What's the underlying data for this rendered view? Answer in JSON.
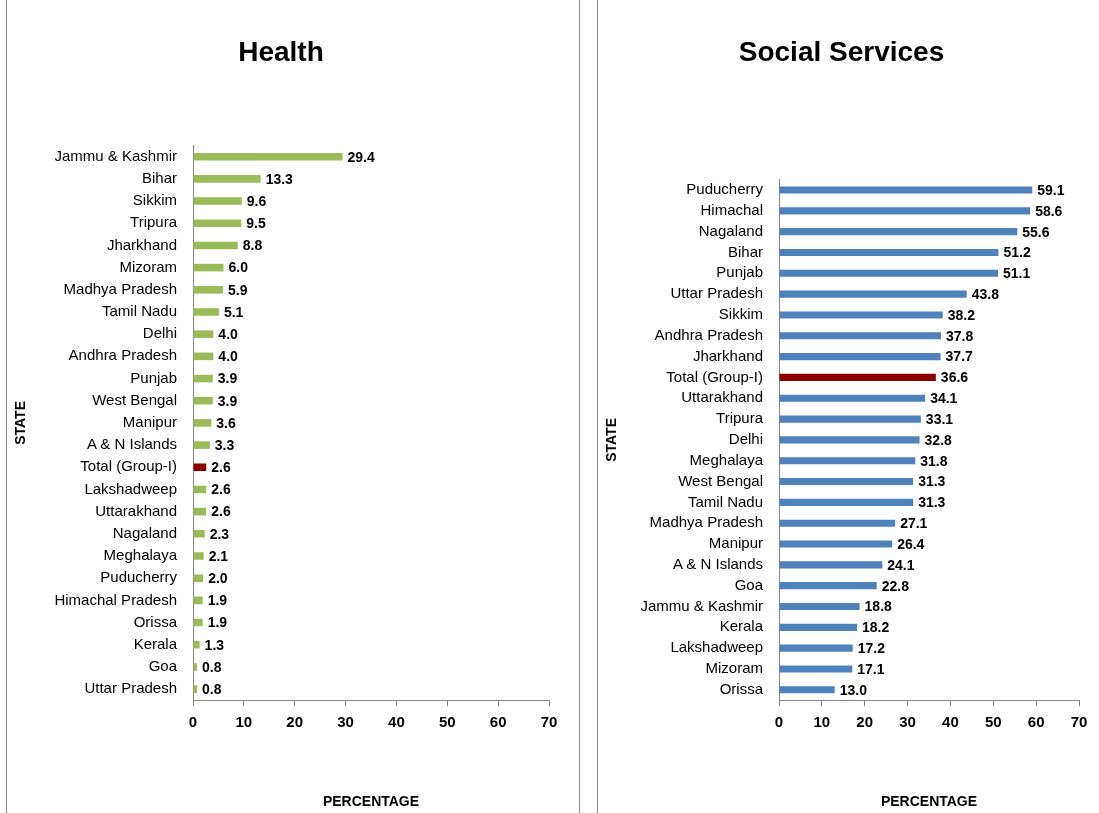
{
  "chart_data": [
    {
      "type": "bar",
      "orientation": "horizontal",
      "title": "Health",
      "xlabel": "PERCENTAGE",
      "ylabel": "STATE",
      "categories": [
        "Jammu & Kashmir",
        "Bihar",
        "Sikkim",
        "Tripura",
        "Jharkhand",
        "Mizoram",
        "Madhya Pradesh",
        "Tamil Nadu",
        "Delhi",
        "Andhra Pradesh",
        "Punjab",
        "West Bengal",
        "Manipur",
        "A & N Islands",
        "Total (Group-I)",
        "Lakshadweep",
        "Uttarakhand",
        "Nagaland",
        "Meghalaya",
        "Puducherry",
        "Himachal Pradesh",
        "Orissa",
        "Kerala",
        "Goa",
        "Uttar Pradesh"
      ],
      "values": [
        29.4,
        13.3,
        9.6,
        9.5,
        8.8,
        6.0,
        5.9,
        5.1,
        4.0,
        4.0,
        3.9,
        3.9,
        3.6,
        3.3,
        2.6,
        2.6,
        2.6,
        2.3,
        2.1,
        2.0,
        1.9,
        1.9,
        1.3,
        0.8,
        0.8
      ],
      "value_labels": [
        "29.4",
        "13.3",
        "9.6",
        "9.5",
        "8.8",
        "6.0",
        "5.9",
        "5.1",
        "4.0",
        "4.0",
        "3.9",
        "3.9",
        "3.6",
        "3.3",
        "2.6",
        "2.6",
        "2.6",
        "2.3",
        "2.1",
        "2.0",
        "1.9",
        "1.9",
        "1.3",
        "0.8",
        "0.8"
      ],
      "colors": [
        "#9bbb59",
        "#9bbb59",
        "#9bbb59",
        "#9bbb59",
        "#9bbb59",
        "#9bbb59",
        "#9bbb59",
        "#9bbb59",
        "#9bbb59",
        "#9bbb59",
        "#9bbb59",
        "#9bbb59",
        "#9bbb59",
        "#9bbb59",
        "#8b0000",
        "#9bbb59",
        "#9bbb59",
        "#9bbb59",
        "#9bbb59",
        "#9bbb59",
        "#9bbb59",
        "#9bbb59",
        "#9bbb59",
        "#9bbb59",
        "#9bbb59"
      ],
      "xlim": [
        0,
        70
      ],
      "xticks": [
        0,
        10,
        20,
        30,
        40,
        50,
        60,
        70
      ]
    },
    {
      "type": "bar",
      "orientation": "horizontal",
      "title": "Social Services",
      "xlabel": "PERCENTAGE",
      "ylabel": "STATE",
      "categories": [
        "Puducherry",
        "Himachal",
        "Nagaland",
        "Bihar",
        "Punjab",
        "Uttar Pradesh",
        "Sikkim",
        "Andhra Pradesh",
        "Jharkhand",
        "Total (Group-I)",
        "Uttarakhand",
        "Tripura",
        "Delhi",
        "Meghalaya",
        "West Bengal",
        "Tamil Nadu",
        "Madhya Pradesh",
        "Manipur",
        "A & N Islands",
        "Goa",
        "Jammu & Kashmir",
        "Kerala",
        "Lakshadweep",
        "Mizoram",
        "Orissa"
      ],
      "values": [
        59.1,
        58.6,
        55.6,
        51.2,
        51.1,
        43.8,
        38.2,
        37.8,
        37.7,
        36.6,
        34.1,
        33.1,
        32.8,
        31.8,
        31.3,
        31.3,
        27.1,
        26.4,
        24.1,
        22.8,
        18.8,
        18.2,
        17.2,
        17.1,
        13.0
      ],
      "value_labels": [
        "59.1",
        "58.6",
        "55.6",
        "51.2",
        "51.1",
        "43.8",
        "38.2",
        "37.8",
        "37.7",
        "36.6",
        "34.1",
        "33.1",
        "32.8",
        "31.8",
        "31.3",
        "31.3",
        "27.1",
        "26.4",
        "24.1",
        "22.8",
        "18.8",
        "18.2",
        "17.2",
        "17.1",
        "13.0"
      ],
      "colors": [
        "#4f81bd",
        "#4f81bd",
        "#4f81bd",
        "#4f81bd",
        "#4f81bd",
        "#4f81bd",
        "#4f81bd",
        "#4f81bd",
        "#4f81bd",
        "#8b0000",
        "#4f81bd",
        "#4f81bd",
        "#4f81bd",
        "#4f81bd",
        "#4f81bd",
        "#4f81bd",
        "#4f81bd",
        "#4f81bd",
        "#4f81bd",
        "#4f81bd",
        "#4f81bd",
        "#4f81bd",
        "#4f81bd",
        "#4f81bd",
        "#4f81bd"
      ],
      "xlim": [
        0,
        70
      ],
      "xticks": [
        0,
        10,
        20,
        30,
        40,
        50,
        60,
        70
      ]
    }
  ]
}
